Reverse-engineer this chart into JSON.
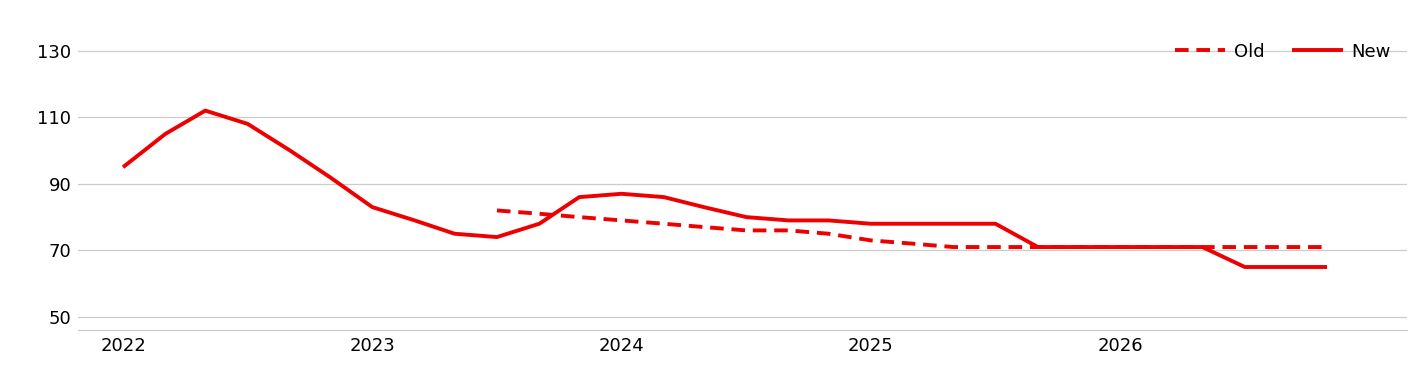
{
  "new_x": [
    2022.0,
    2022.17,
    2022.33,
    2022.5,
    2022.67,
    2022.83,
    2023.0,
    2023.17,
    2023.33,
    2023.5,
    2023.67,
    2023.83,
    2024.0,
    2024.17,
    2024.33,
    2024.5,
    2024.67,
    2024.83,
    2025.0,
    2025.17,
    2025.33,
    2025.5,
    2025.67,
    2025.83,
    2026.0,
    2026.17,
    2026.33,
    2026.5,
    2026.67,
    2026.83
  ],
  "new_y": [
    95,
    105,
    112,
    108,
    100,
    92,
    83,
    79,
    75,
    74,
    78,
    86,
    87,
    86,
    83,
    80,
    79,
    79,
    78,
    78,
    78,
    78,
    71,
    71,
    71,
    71,
    71,
    65,
    65,
    65
  ],
  "old_x": [
    2023.5,
    2023.67,
    2023.83,
    2024.0,
    2024.17,
    2024.33,
    2024.5,
    2024.67,
    2024.83,
    2025.0,
    2025.17,
    2025.33,
    2025.5,
    2025.67,
    2025.83,
    2026.0,
    2026.17,
    2026.33,
    2026.5,
    2026.67,
    2026.83
  ],
  "old_y": [
    82,
    81,
    80,
    79,
    78,
    77,
    76,
    76,
    75,
    73,
    72,
    71,
    71,
    71,
    71,
    71,
    71,
    71,
    71,
    71,
    71
  ],
  "color": "#ee0000",
  "yticks": [
    50,
    70,
    90,
    110,
    130
  ],
  "xticks": [
    2022,
    2023,
    2024,
    2025,
    2026
  ],
  "ylim": [
    46,
    136
  ],
  "xlim": [
    2021.82,
    2027.15
  ],
  "grid_color": "#cccccc",
  "bg_color": "#ffffff",
  "legend_old": "Old",
  "legend_new": "New",
  "linewidth": 2.8
}
